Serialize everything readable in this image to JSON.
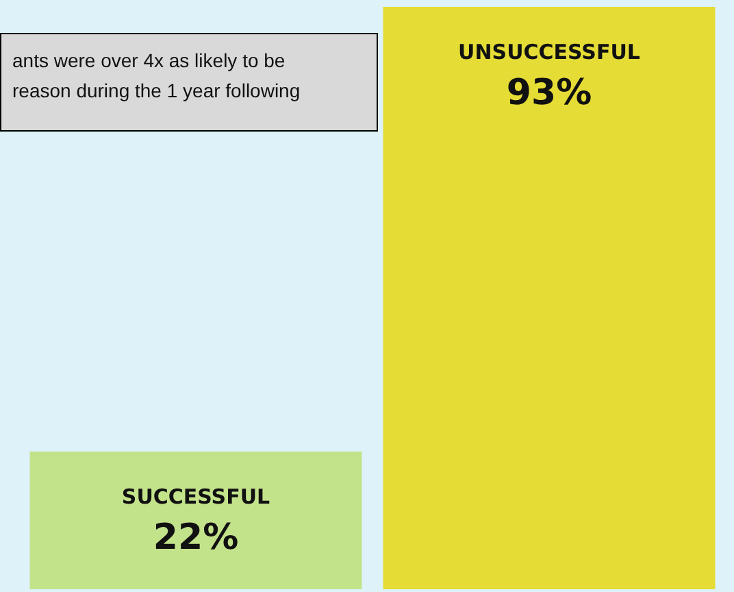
{
  "chart_data": {
    "type": "bar",
    "categories": [
      "SUCCESSFUL",
      "UNSUCCESSFUL"
    ],
    "values": [
      22,
      93
    ],
    "value_labels": [
      "22%",
      "93%"
    ],
    "colors": [
      "#c3e38b",
      "#e5dc36"
    ],
    "annotations": [
      "ants were over 4x as likely to be\nreason during the 1 year following"
    ]
  }
}
